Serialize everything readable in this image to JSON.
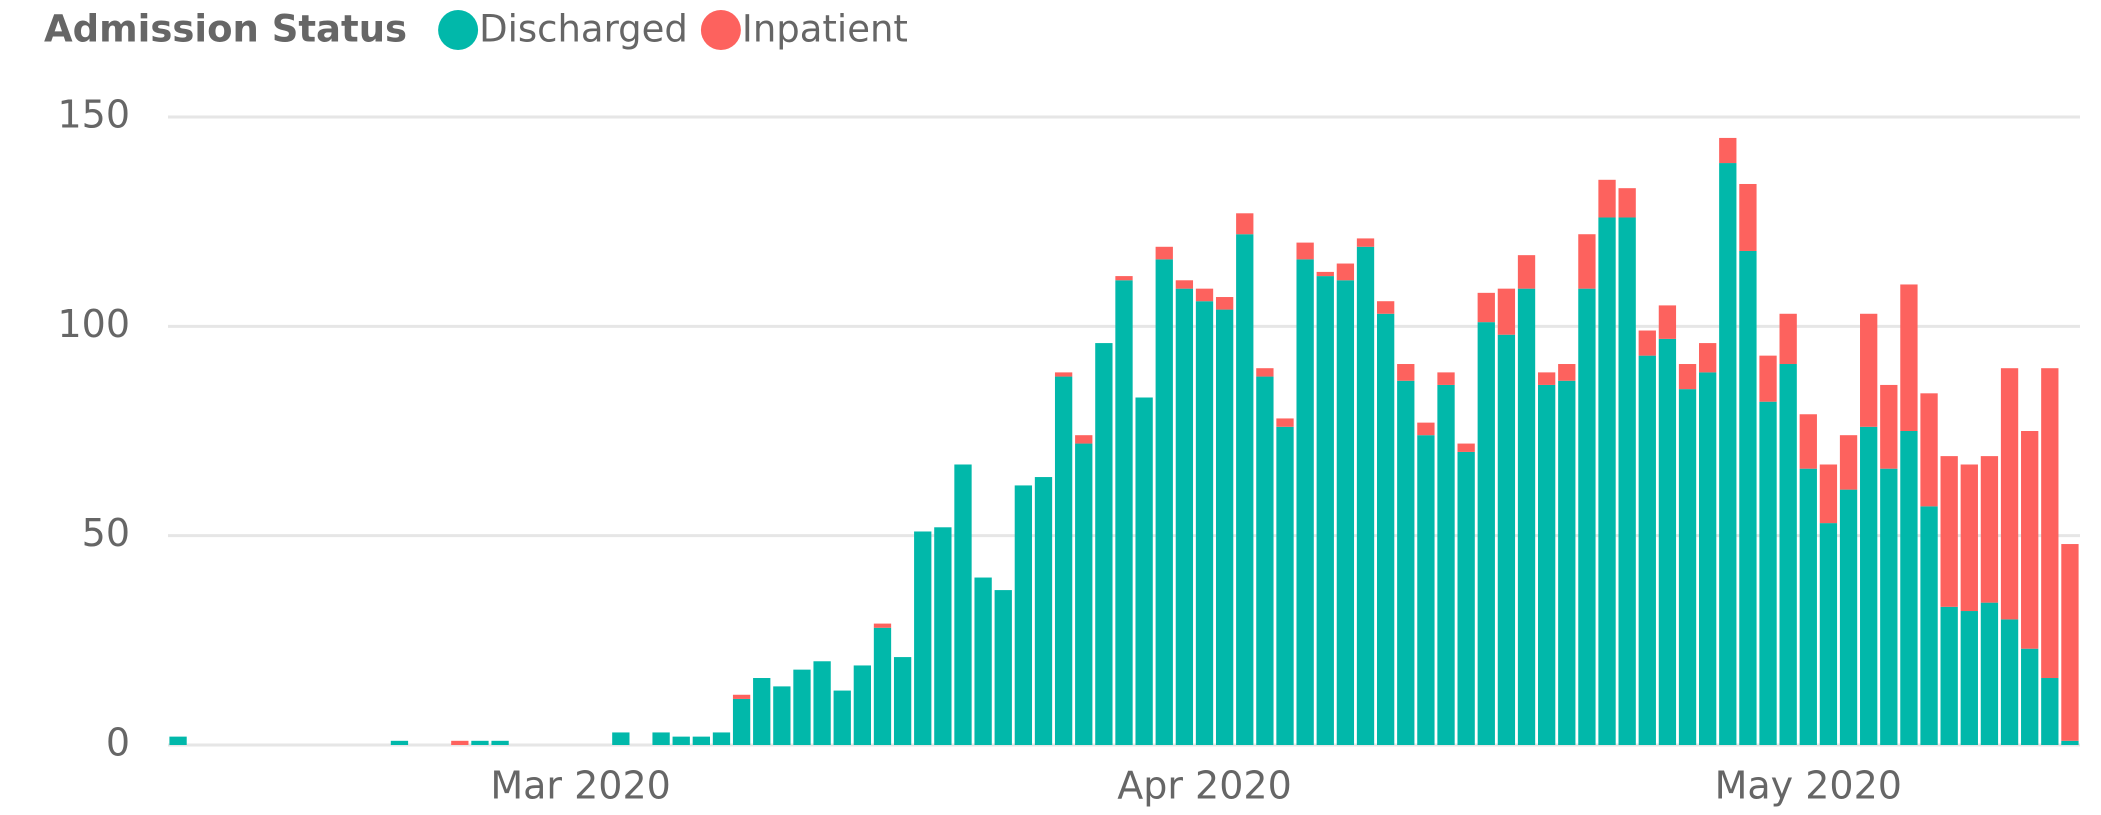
{
  "chart_data": {
    "type": "stacked_bar",
    "legend_title": "Admission Status",
    "categories": [
      null,
      null,
      null,
      null,
      null,
      null,
      null,
      null,
      null,
      null,
      null,
      null,
      null,
      null,
      null,
      null,
      null,
      null,
      null,
      null,
      null,
      null,
      null,
      null,
      null,
      null,
      null,
      null,
      null,
      null,
      null,
      null,
      null,
      null,
      null,
      null,
      null,
      null,
      null,
      null,
      null,
      null,
      null,
      null,
      null,
      null,
      null,
      null,
      null,
      null,
      null,
      null,
      null,
      null,
      null,
      null,
      null,
      null,
      null,
      null,
      null,
      null,
      null,
      null,
      null,
      null,
      null,
      null,
      null,
      null,
      null,
      null,
      null,
      null,
      null,
      null,
      null,
      null,
      null,
      null,
      null,
      null,
      null,
      null,
      null,
      null,
      null,
      null,
      null,
      null,
      null,
      null,
      null,
      null,
      null
    ],
    "xticks": [
      {
        "value": 20,
        "label": "Mar 2020"
      },
      {
        "value": 51,
        "label": "Apr 2020"
      },
      {
        "value": 81,
        "label": "May 2020"
      }
    ],
    "series": [
      {
        "name": "Discharged",
        "color": "#01b8aa",
        "values": [
          2,
          0,
          0,
          0,
          0,
          0,
          0,
          0,
          0,
          0,
          0,
          1,
          0,
          0,
          0,
          1,
          1,
          0,
          0,
          0,
          0,
          0,
          3,
          0,
          3,
          2,
          2,
          3,
          11,
          16,
          14,
          18,
          20,
          13,
          19,
          28,
          21,
          51,
          52,
          67,
          40,
          37,
          62,
          64,
          88,
          72,
          96,
          111,
          83,
          116,
          109,
          106,
          104,
          122,
          88,
          76,
          116,
          112,
          111,
          119,
          103,
          87,
          74,
          86,
          70,
          101,
          98,
          109,
          86,
          87,
          109,
          126,
          126,
          93,
          97,
          85,
          89,
          139,
          118,
          82,
          91,
          66,
          53,
          61,
          76,
          66,
          75,
          57,
          33,
          32,
          34,
          30,
          23,
          16,
          1
        ]
      },
      {
        "name": "Inpatient",
        "color": "#fd625e",
        "values": [
          0,
          0,
          0,
          0,
          0,
          0,
          0,
          0,
          0,
          0,
          0,
          0,
          0,
          0,
          1,
          0,
          0,
          0,
          0,
          0,
          0,
          0,
          0,
          0,
          0,
          0,
          0,
          0,
          1,
          0,
          0,
          0,
          0,
          0,
          0,
          1,
          0,
          0,
          0,
          0,
          0,
          0,
          0,
          0,
          1,
          2,
          0,
          1,
          0,
          3,
          2,
          3,
          3,
          5,
          2,
          2,
          4,
          1,
          4,
          2,
          3,
          4,
          3,
          3,
          2,
          7,
          11,
          8,
          3,
          4,
          13,
          9,
          7,
          6,
          8,
          6,
          7,
          6,
          16,
          11,
          12,
          13,
          14,
          13,
          27,
          20,
          35,
          27,
          36,
          35,
          35,
          60,
          52,
          74,
          47
        ]
      }
    ],
    "ylim": [
      0,
      150
    ],
    "yticks": [
      0,
      50,
      100,
      150
    ],
    "grid": true
  }
}
